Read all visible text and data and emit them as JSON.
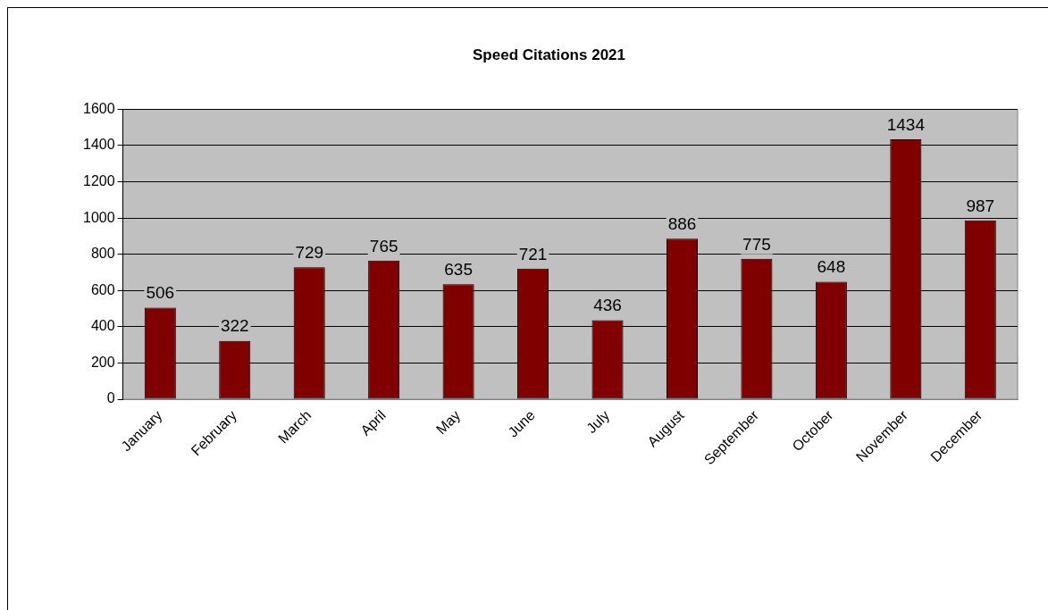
{
  "chart_data": {
    "type": "bar",
    "title": "Speed Citations 2021",
    "categories": [
      "January",
      "February",
      "March",
      "April",
      "May",
      "June",
      "July",
      "August",
      "September",
      "October",
      "November",
      "December"
    ],
    "values": [
      506,
      322,
      729,
      765,
      635,
      721,
      436,
      886,
      775,
      648,
      1434,
      987
    ],
    "color": "#800000",
    "ylim": [
      0,
      1600
    ],
    "yticks": [
      0,
      200,
      400,
      600,
      800,
      1000,
      1200,
      1400,
      1600
    ],
    "grid": "y",
    "legend": false,
    "data_labels": true
  }
}
